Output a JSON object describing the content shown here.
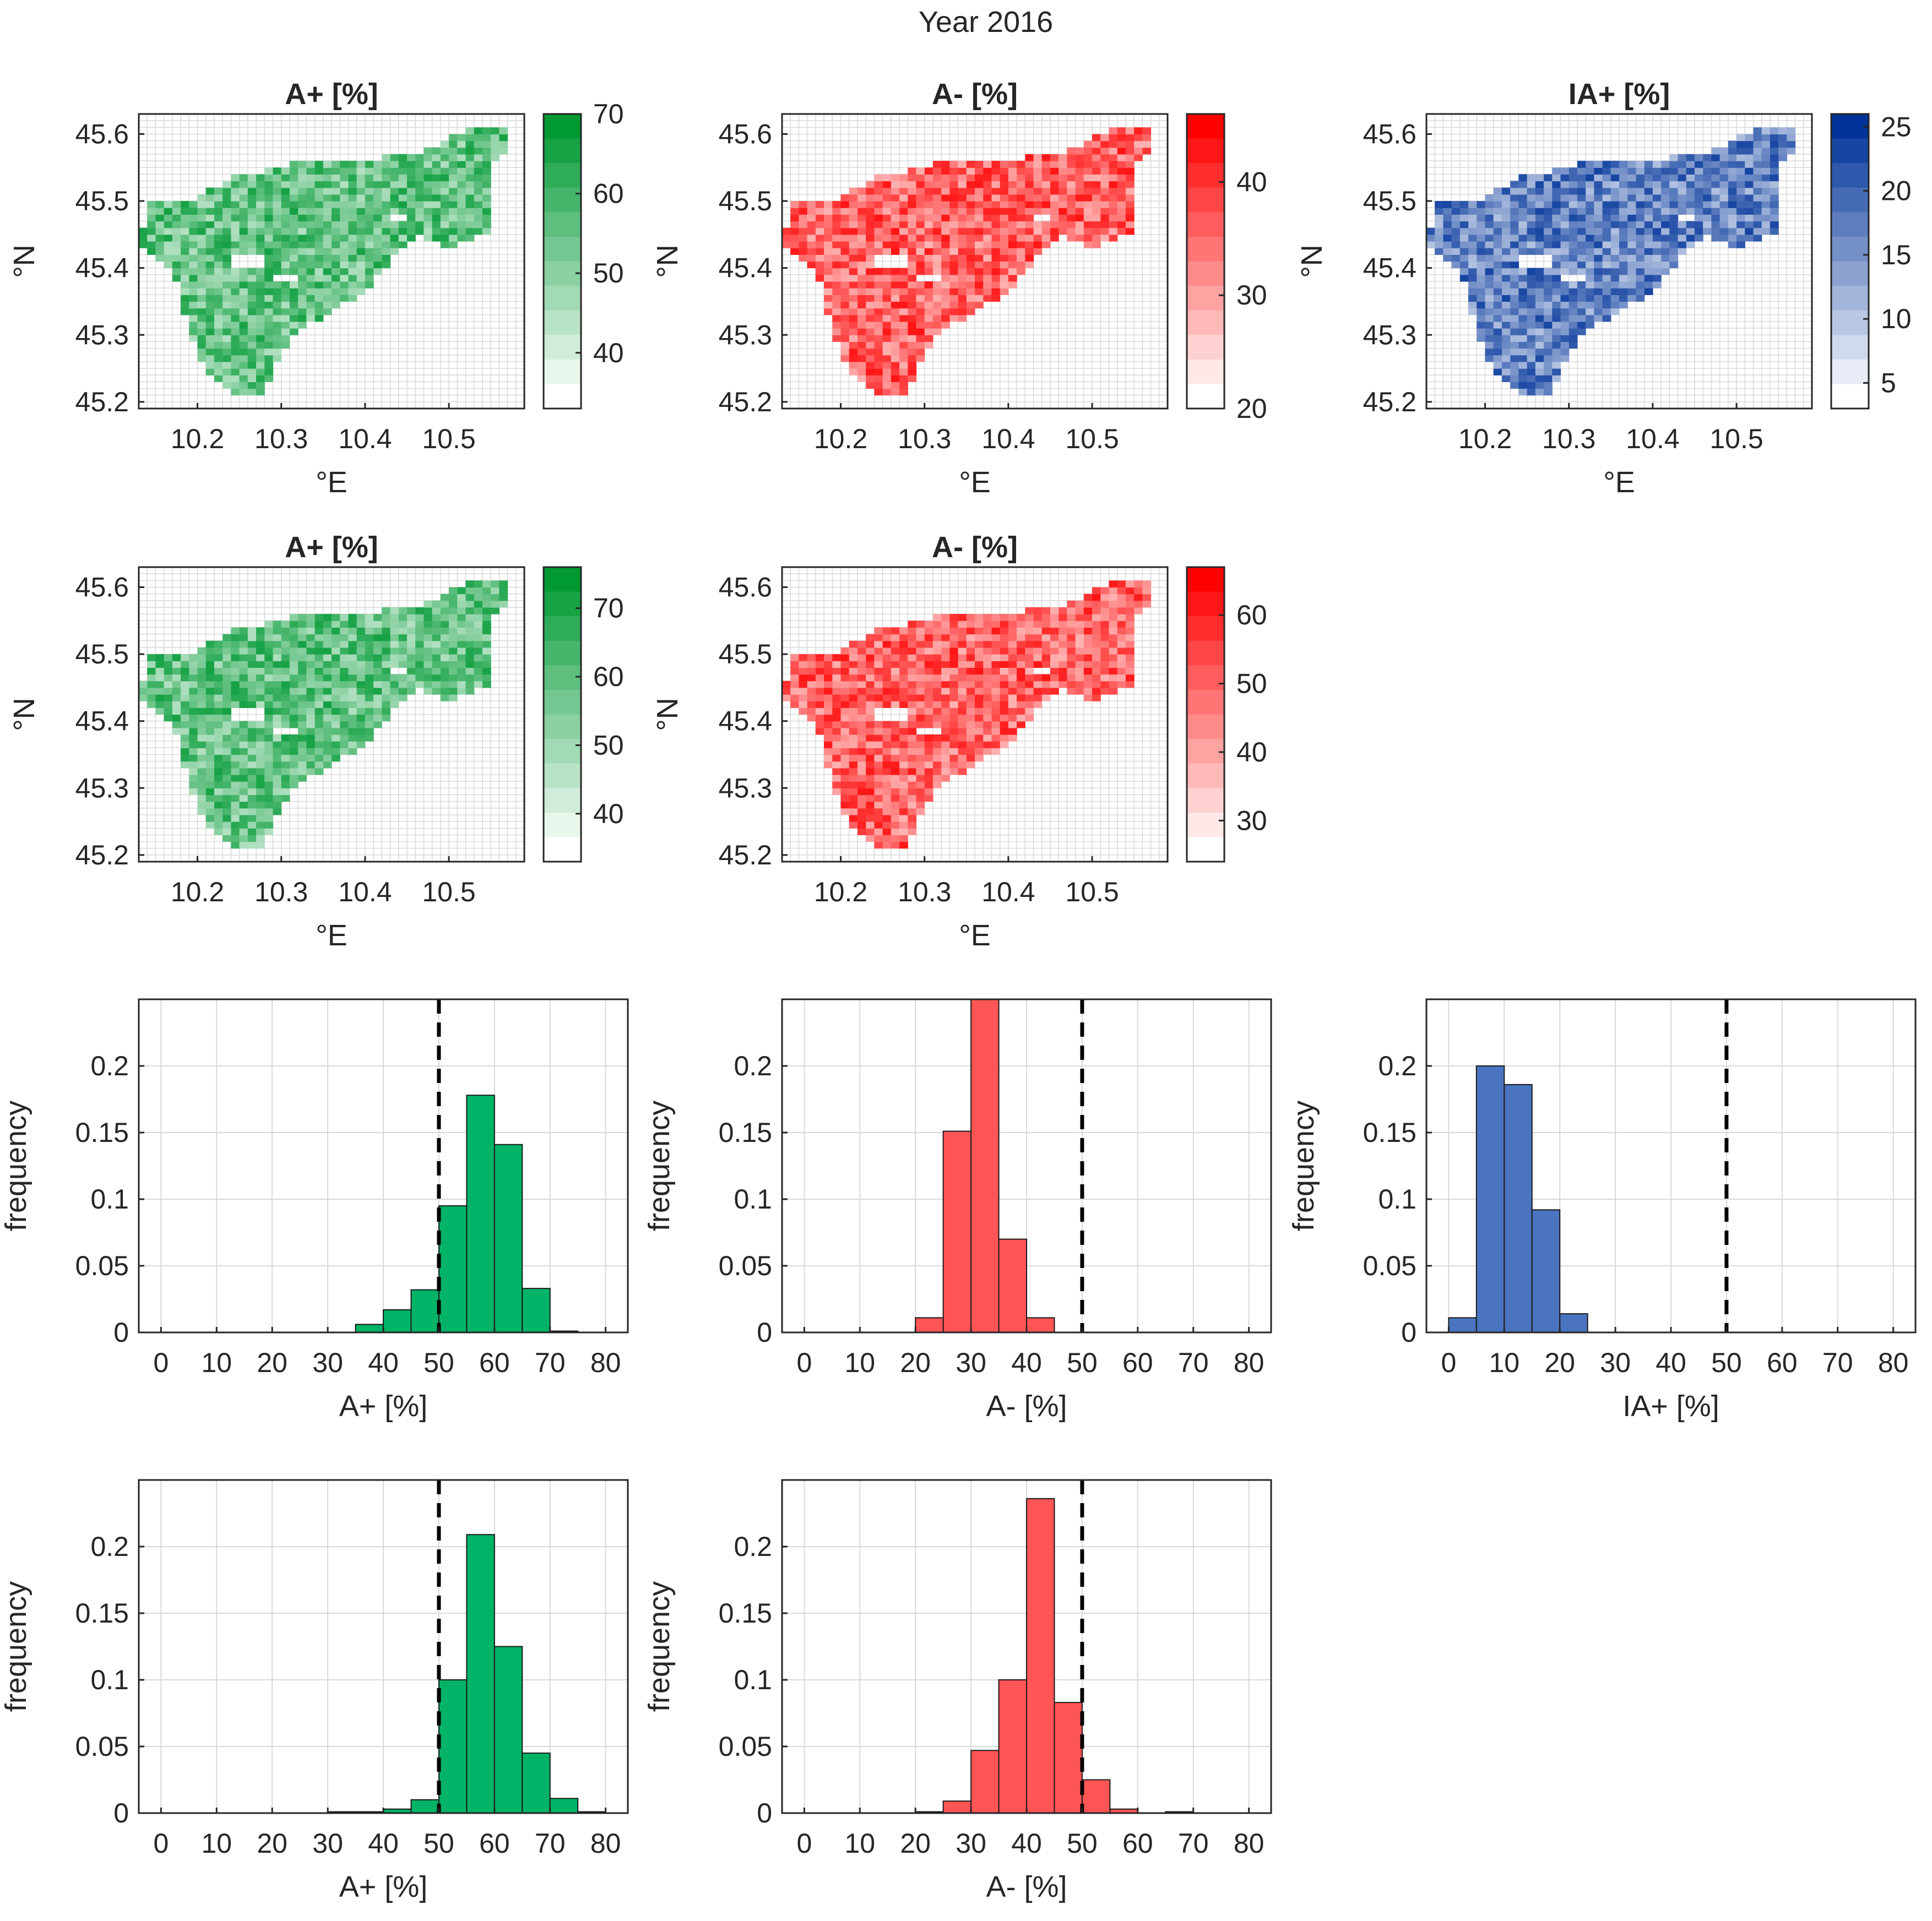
{
  "figure_title": "Year 2016",
  "colors": {
    "green": "#00b366",
    "red": "#ff5555",
    "blue": "#4a74c0",
    "green_dark": "#009933",
    "red_dark": "#ff0000",
    "blue_dark": "#003399",
    "grid": "#d9d9d9",
    "axis": "#262626"
  },
  "chart_data": [
    {
      "id": "map-a-plus-1",
      "type": "heatmap",
      "title": "A+ [%]",
      "xlabel": "°E",
      "ylabel": "°N",
      "xlim": [
        10.13,
        10.59
      ],
      "ylim": [
        45.19,
        45.63
      ],
      "xticks": [
        "10.2",
        "10.3",
        "10.4",
        "10.5"
      ],
      "yticks": [
        "45.6",
        "45.5",
        "45.4",
        "45.3",
        "45.2"
      ],
      "colorbar": {
        "min": 33,
        "max": 70,
        "ticks": [
          "70",
          "60",
          "50",
          "40"
        ],
        "scheme": "green"
      }
    },
    {
      "id": "map-a-minus-1",
      "type": "heatmap",
      "title": "A- [%]",
      "xlabel": "°E",
      "ylabel": "°N",
      "xlim": [
        10.13,
        10.59
      ],
      "ylim": [
        45.19,
        45.63
      ],
      "xticks": [
        "10.2",
        "10.3",
        "10.4",
        "10.5"
      ],
      "yticks": [
        "45.6",
        "45.5",
        "45.4",
        "45.3",
        "45.2"
      ],
      "colorbar": {
        "min": 20,
        "max": 46,
        "ticks": [
          "40",
          "30",
          "20"
        ],
        "scheme": "red"
      }
    },
    {
      "id": "map-ia-plus",
      "type": "heatmap",
      "title": "IA+ [%]",
      "xlabel": "°E",
      "ylabel": "°N",
      "xlim": [
        10.13,
        10.59
      ],
      "ylim": [
        45.19,
        45.63
      ],
      "xticks": [
        "10.2",
        "10.3",
        "10.4",
        "10.5"
      ],
      "yticks": [
        "45.6",
        "45.5",
        "45.4",
        "45.3",
        "45.2"
      ],
      "colorbar": {
        "min": 3,
        "max": 26,
        "ticks": [
          "25",
          "20",
          "15",
          "10",
          "5"
        ],
        "scheme": "blue"
      }
    },
    {
      "id": "map-a-plus-2",
      "type": "heatmap",
      "title": "A+ [%]",
      "xlabel": "°E",
      "ylabel": "°N",
      "xlim": [
        10.13,
        10.59
      ],
      "ylim": [
        45.19,
        45.63
      ],
      "xticks": [
        "10.2",
        "10.3",
        "10.4",
        "10.5"
      ],
      "yticks": [
        "45.6",
        "45.5",
        "45.4",
        "45.3",
        "45.2"
      ],
      "colorbar": {
        "min": 33,
        "max": 76,
        "ticks": [
          "70",
          "60",
          "50",
          "40"
        ],
        "scheme": "green"
      }
    },
    {
      "id": "map-a-minus-2",
      "type": "heatmap",
      "title": "A- [%]",
      "xlabel": "°E",
      "ylabel": "°N",
      "xlim": [
        10.13,
        10.59
      ],
      "ylim": [
        45.19,
        45.63
      ],
      "xticks": [
        "10.2",
        "10.3",
        "10.4",
        "10.5"
      ],
      "yticks": [
        "45.6",
        "45.5",
        "45.4",
        "45.3",
        "45.2"
      ],
      "colorbar": {
        "min": 24,
        "max": 67,
        "ticks": [
          "60",
          "50",
          "40",
          "30"
        ],
        "scheme": "red"
      }
    },
    {
      "id": "hist-a-plus-1",
      "type": "bar",
      "xlabel": "A+ [%]",
      "ylabel": "frequency",
      "xlim": [
        -4,
        84
      ],
      "ylim": [
        0,
        0.25
      ],
      "bin_width": 5,
      "threshold": 50,
      "scheme": "green",
      "xticks": [
        "0",
        "10",
        "20",
        "30",
        "40",
        "50",
        "60",
        "70",
        "80"
      ],
      "yticks": [
        "0",
        "0.05",
        "0.1",
        "0.15",
        "0.2"
      ],
      "bin_starts": [
        35,
        40,
        45,
        50,
        55,
        60,
        65,
        70
      ],
      "values": [
        0.006,
        0.017,
        0.032,
        0.095,
        0.178,
        0.141,
        0.033,
        0.001
      ]
    },
    {
      "id": "hist-a-minus-1",
      "type": "bar",
      "xlabel": "A- [%]",
      "ylabel": "frequency",
      "xlim": [
        -4,
        84
      ],
      "ylim": [
        0,
        0.25
      ],
      "bin_width": 5,
      "threshold": 50,
      "scheme": "red",
      "xticks": [
        "0",
        "10",
        "20",
        "30",
        "40",
        "50",
        "60",
        "70",
        "80"
      ],
      "yticks": [
        "0",
        "0.05",
        "0.1",
        "0.15",
        "0.2"
      ],
      "bin_starts": [
        20,
        25,
        30,
        35,
        40
      ],
      "values": [
        0.011,
        0.151,
        0.25,
        0.07,
        0.011
      ]
    },
    {
      "id": "hist-ia-plus",
      "type": "bar",
      "xlabel": "IA+ [%]",
      "ylabel": "frequency",
      "xlim": [
        -4,
        84
      ],
      "ylim": [
        0,
        0.25
      ],
      "bin_width": 5,
      "threshold": 50,
      "scheme": "blue",
      "xticks": [
        "0",
        "10",
        "20",
        "30",
        "40",
        "50",
        "60",
        "70",
        "80"
      ],
      "yticks": [
        "0",
        "0.05",
        "0.1",
        "0.15",
        "0.2"
      ],
      "bin_starts": [
        0,
        5,
        10,
        15,
        20
      ],
      "values": [
        0.011,
        0.2,
        0.186,
        0.092,
        0.014
      ]
    },
    {
      "id": "hist-a-plus-2",
      "type": "bar",
      "xlabel": "A+ [%]",
      "ylabel": "frequency",
      "xlim": [
        -4,
        84
      ],
      "ylim": [
        0,
        0.25
      ],
      "bin_width": 5,
      "threshold": 50,
      "scheme": "green",
      "xticks": [
        "0",
        "10",
        "20",
        "30",
        "40",
        "50",
        "60",
        "70",
        "80"
      ],
      "yticks": [
        "0",
        "0.05",
        "0.1",
        "0.15",
        "0.2"
      ],
      "bin_starts": [
        30,
        35,
        40,
        45,
        50,
        55,
        60,
        65,
        70,
        75
      ],
      "values": [
        0.001,
        0.001,
        0.003,
        0.01,
        0.1,
        0.209,
        0.125,
        0.045,
        0.011,
        0.001
      ]
    },
    {
      "id": "hist-a-minus-2",
      "type": "bar",
      "xlabel": "A- [%]",
      "ylabel": "frequency",
      "xlim": [
        -4,
        84
      ],
      "ylim": [
        0,
        0.25
      ],
      "bin_width": 5,
      "threshold": 50,
      "scheme": "red",
      "xticks": [
        "0",
        "10",
        "20",
        "30",
        "40",
        "50",
        "60",
        "70",
        "80"
      ],
      "yticks": [
        "0",
        "0.05",
        "0.1",
        "0.15",
        "0.2"
      ],
      "bin_starts": [
        20,
        25,
        30,
        35,
        40,
        45,
        50,
        55,
        65
      ],
      "values": [
        0.001,
        0.009,
        0.047,
        0.1,
        0.236,
        0.083,
        0.025,
        0.003,
        0.001
      ]
    }
  ]
}
